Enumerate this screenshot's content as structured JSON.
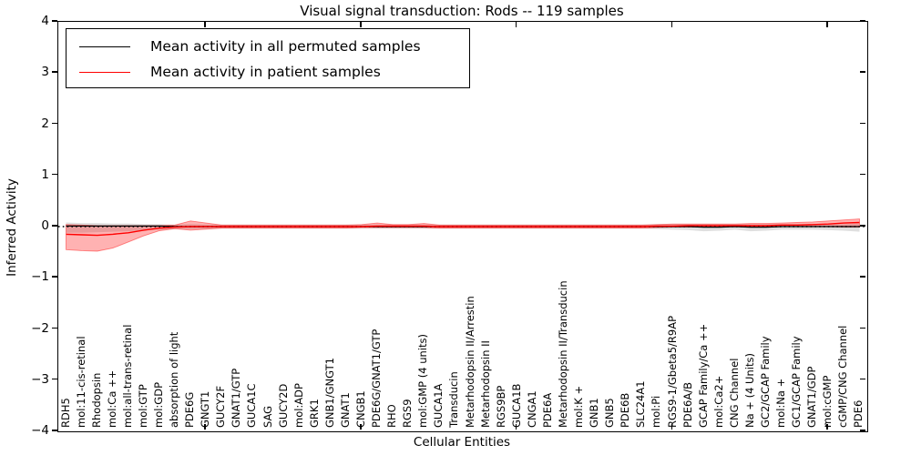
{
  "title": "Visual signal transduction: Rods -- 119 samples",
  "axes": {
    "xlabel": "Cellular Entities",
    "ylabel": "Inferred Activity",
    "ytick_labels": [
      "−4",
      "−3",
      "−2",
      "−1",
      "0",
      "1",
      "2",
      "3",
      "4"
    ]
  },
  "legend": {
    "items": [
      {
        "label": "Mean activity in all permuted samples",
        "color": "#000000"
      },
      {
        "label": "Mean activity in patient samples",
        "color": "#ff0000"
      }
    ]
  },
  "colors": {
    "permuted_line": "#000000",
    "patient_line": "#ff0000",
    "permuted_band": "#bfbfbf",
    "patient_band": "#ff0000",
    "frame": "#000000"
  },
  "chart_data": {
    "type": "line",
    "title": "Visual signal transduction: Rods -- 119 samples",
    "xlabel": "Cellular Entities",
    "ylabel": "Inferred Activity",
    "ylim": [
      -4,
      4
    ],
    "yticks": [
      -4,
      -3,
      -2,
      -1,
      0,
      1,
      2,
      3,
      4
    ],
    "xticks": [
      10,
      20,
      30,
      40,
      50
    ],
    "grid": false,
    "zero_line": "dotted",
    "legend_position": "upper left",
    "categories": [
      "RDH5",
      "mol:11-cis-retinal",
      "Rhodopsin",
      "mol:Ca ++",
      "mol:all-trans-retinal",
      "mol:GTP",
      "mol:GDP",
      "absorption of light",
      "PDE6G",
      "GNGT1",
      "GUCY2F",
      "GNAT1/GTP",
      "GUCA1C",
      "SAG",
      "GUCY2D",
      "mol:ADP",
      "GRK1",
      "GNB1/GNGT1",
      "GNAT1",
      "CNGB1",
      "PDE6G/GNAT1/GTP",
      "RHO",
      "RGS9",
      "mol:GMP (4 units)",
      "GUCA1A",
      "Transducin",
      "Metarhodopsin II/Arrestin",
      "Metarhodopsin II",
      "RGS9BP",
      "GUCA1B",
      "CNGA1",
      "PDE6A",
      "Metarhodopsin II/Transducin",
      "mol:K +",
      "GNB1",
      "GNB5",
      "PDE6B",
      "SLC24A1",
      "mol:Pi",
      "RGS9-1/Gbeta5/R9AP",
      "PDE6A/B",
      "GCAP Family/Ca ++",
      "mol:Ca2+",
      "CNG Channel",
      "Na + (4 Units)",
      "GC2/GCAP Family",
      "mol:Na +",
      "GC1/GCAP Family",
      "GNAT1/GDP",
      "mol:cGMP",
      "cGMP/CNG Channel",
      "PDE6"
    ],
    "series": [
      {
        "name": "Mean activity in all permuted samples",
        "color": "#000000",
        "width": 1.2,
        "values": [
          0.01,
          0.01,
          0.01,
          0.01,
          0.01,
          0.01,
          0.01,
          0,
          0,
          0,
          0,
          0,
          0,
          0,
          0,
          0,
          0,
          0,
          0,
          0,
          0,
          0,
          0,
          0,
          0,
          0,
          0,
          0,
          0,
          0,
          0,
          0,
          0,
          0,
          0,
          0,
          0,
          0,
          0,
          0,
          0,
          -0.01,
          -0.01,
          0,
          -0.01,
          -0.01,
          0,
          0,
          0,
          0,
          0,
          0
        ]
      },
      {
        "name": "Mean activity in patient samples",
        "color": "#ff0000",
        "width": 1.4,
        "values": [
          -0.15,
          -0.16,
          -0.17,
          -0.15,
          -0.12,
          -0.07,
          -0.03,
          -0.01,
          0,
          0,
          0,
          0,
          0,
          0,
          0,
          0,
          0,
          0,
          0,
          0,
          0.01,
          0.01,
          0.01,
          0.01,
          0,
          0,
          0,
          0,
          0,
          0,
          0,
          0,
          0,
          0,
          0,
          0,
          0,
          0,
          0.01,
          0.01,
          0.02,
          0.02,
          0.02,
          0.02,
          0.02,
          0.02,
          0.03,
          0.03,
          0.04,
          0.05,
          0.07,
          0.08
        ]
      }
    ],
    "bands": [
      {
        "name": "permuted-samples-range",
        "color": "#bfbfbf",
        "opacity": 0.5,
        "stroke": "none",
        "upper": [
          0.08,
          0.07,
          0.07,
          0.06,
          0.06,
          0.05,
          0.05,
          0.04,
          0.05,
          0.04,
          0.04,
          0.04,
          0.04,
          0.04,
          0.04,
          0.04,
          0.04,
          0.04,
          0.04,
          0.04,
          0.04,
          0.04,
          0.04,
          0.04,
          0.04,
          0.04,
          0.04,
          0.04,
          0.04,
          0.04,
          0.04,
          0.04,
          0.04,
          0.04,
          0.04,
          0.04,
          0.04,
          0.04,
          0.05,
          0.05,
          0.05,
          0.05,
          0.05,
          0.05,
          0.05,
          0.05,
          0.05,
          0.05,
          0.05,
          0.05,
          0.05,
          0.06
        ],
        "lower": [
          -0.12,
          -0.12,
          -0.11,
          -0.1,
          -0.09,
          -0.07,
          -0.06,
          -0.05,
          -0.05,
          -0.05,
          -0.04,
          -0.04,
          -0.04,
          -0.04,
          -0.04,
          -0.04,
          -0.04,
          -0.04,
          -0.04,
          -0.04,
          -0.04,
          -0.04,
          -0.04,
          -0.04,
          -0.04,
          -0.04,
          -0.04,
          -0.04,
          -0.04,
          -0.04,
          -0.04,
          -0.04,
          -0.04,
          -0.04,
          -0.04,
          -0.04,
          -0.04,
          -0.04,
          -0.05,
          -0.06,
          -0.07,
          -0.09,
          -0.08,
          -0.06,
          -0.09,
          -0.08,
          -0.06,
          -0.06,
          -0.06,
          -0.07,
          -0.08,
          -0.1
        ]
      },
      {
        "name": "patient-samples-range",
        "color": "#ff0000",
        "opacity": 0.3,
        "stroke": "rgba(255,0,0,0.45)",
        "upper": [
          0.04,
          0.03,
          0.02,
          0.02,
          0.02,
          0.02,
          0.02,
          0.03,
          0.11,
          0.07,
          0.03,
          0.03,
          0.03,
          0.03,
          0.03,
          0.03,
          0.03,
          0.03,
          0.03,
          0.04,
          0.07,
          0.04,
          0.04,
          0.06,
          0.03,
          0.03,
          0.03,
          0.03,
          0.03,
          0.03,
          0.03,
          0.03,
          0.03,
          0.03,
          0.03,
          0.03,
          0.03,
          0.03,
          0.04,
          0.05,
          0.05,
          0.05,
          0.05,
          0.05,
          0.06,
          0.06,
          0.07,
          0.08,
          0.09,
          0.11,
          0.13,
          0.15
        ],
        "lower": [
          -0.45,
          -0.47,
          -0.48,
          -0.42,
          -0.3,
          -0.18,
          -0.08,
          -0.04,
          -0.07,
          -0.05,
          -0.03,
          -0.03,
          -0.03,
          -0.03,
          -0.03,
          -0.03,
          -0.03,
          -0.03,
          -0.03,
          -0.02,
          -0.02,
          -0.02,
          -0.02,
          -0.02,
          -0.03,
          -0.03,
          -0.03,
          -0.03,
          -0.03,
          -0.03,
          -0.03,
          -0.03,
          -0.03,
          -0.03,
          -0.03,
          -0.03,
          -0.03,
          -0.03,
          -0.02,
          -0.01,
          -0.01,
          0,
          0,
          0,
          0,
          0,
          0,
          0,
          0,
          0,
          -0.01,
          -0.01
        ]
      }
    ]
  }
}
